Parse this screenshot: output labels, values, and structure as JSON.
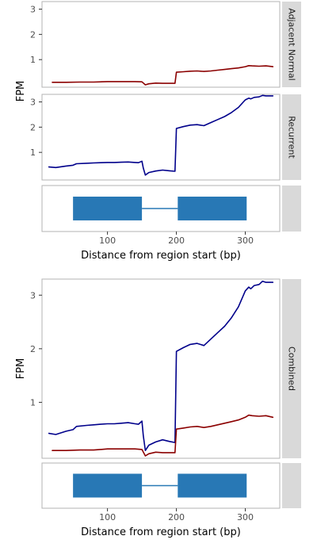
{
  "colors": {
    "adjacent_normal": "#8B0000",
    "recurrent": "#00008B",
    "gene_exon": "#2878B5",
    "strip_bg": "#D9D9D9",
    "panel_border": "#B3B3B3"
  },
  "chart_data": [
    {
      "type": "line",
      "facets": [
        "Adjacent Normal",
        "Recurrent"
      ],
      "ylabel": "FPM",
      "xlabel": "Distance from region start (bp)",
      "x_ticks": [
        100,
        200,
        300
      ],
      "y_ticks": [
        1,
        2,
        3
      ],
      "xlim": [
        5,
        350
      ],
      "ylim": [
        0,
        3.3
      ],
      "series": [
        {
          "name": "Adjacent Normal",
          "facet": "Adjacent Normal",
          "x": [
            20,
            40,
            60,
            80,
            100,
            120,
            140,
            150,
            155,
            160,
            170,
            180,
            190,
            198,
            200,
            210,
            220,
            230,
            240,
            250,
            260,
            270,
            280,
            290,
            300,
            305,
            310,
            320,
            330,
            340
          ],
          "y": [
            0.1,
            0.1,
            0.11,
            0.11,
            0.13,
            0.13,
            0.13,
            0.12,
            0.0,
            0.04,
            0.07,
            0.06,
            0.06,
            0.06,
            0.5,
            0.52,
            0.54,
            0.55,
            0.53,
            0.55,
            0.58,
            0.61,
            0.64,
            0.67,
            0.72,
            0.76,
            0.75,
            0.74,
            0.75,
            0.72
          ]
        },
        {
          "name": "Recurrent",
          "facet": "Recurrent",
          "x": [
            15,
            25,
            40,
            50,
            55,
            70,
            80,
            90,
            100,
            110,
            120,
            130,
            140,
            145,
            150,
            152,
            155,
            160,
            170,
            180,
            190,
            198,
            200,
            210,
            220,
            230,
            240,
            250,
            260,
            270,
            280,
            290,
            300,
            305,
            308,
            313,
            320,
            325,
            330,
            340
          ],
          "y": [
            0.42,
            0.4,
            0.46,
            0.49,
            0.55,
            0.57,
            0.58,
            0.59,
            0.6,
            0.6,
            0.61,
            0.62,
            0.6,
            0.59,
            0.65,
            0.38,
            0.1,
            0.2,
            0.26,
            0.3,
            0.27,
            0.25,
            1.95,
            2.02,
            2.08,
            2.1,
            2.06,
            2.18,
            2.3,
            2.42,
            2.58,
            2.78,
            3.08,
            3.15,
            3.12,
            3.18,
            3.2,
            3.26,
            3.24,
            3.24
          ]
        }
      ]
    },
    {
      "type": "line",
      "facets": [
        "Combined"
      ],
      "ylabel": "FPM",
      "xlabel": "Distance from region start (bp)",
      "x_ticks": [
        100,
        200,
        300
      ],
      "y_ticks": [
        1,
        2,
        3
      ],
      "xlim": [
        5,
        350
      ],
      "ylim": [
        0,
        3.3
      ],
      "series": [
        {
          "name": "Recurrent",
          "facet": "Combined",
          "x": [
            15,
            25,
            40,
            50,
            55,
            70,
            80,
            90,
            100,
            110,
            120,
            130,
            140,
            145,
            150,
            152,
            155,
            160,
            170,
            180,
            190,
            198,
            200,
            210,
            220,
            230,
            240,
            250,
            260,
            270,
            280,
            290,
            300,
            305,
            308,
            313,
            320,
            325,
            330,
            340
          ],
          "y": [
            0.42,
            0.4,
            0.46,
            0.49,
            0.55,
            0.57,
            0.58,
            0.59,
            0.6,
            0.6,
            0.61,
            0.62,
            0.6,
            0.59,
            0.65,
            0.38,
            0.1,
            0.2,
            0.26,
            0.3,
            0.27,
            0.25,
            1.95,
            2.02,
            2.08,
            2.1,
            2.06,
            2.18,
            2.3,
            2.42,
            2.58,
            2.78,
            3.08,
            3.15,
            3.12,
            3.18,
            3.2,
            3.26,
            3.24,
            3.24
          ]
        },
        {
          "name": "Adjacent Normal",
          "facet": "Combined",
          "x": [
            20,
            40,
            60,
            80,
            100,
            120,
            140,
            150,
            155,
            160,
            170,
            180,
            190,
            198,
            200,
            210,
            220,
            230,
            240,
            250,
            260,
            270,
            280,
            290,
            300,
            305,
            310,
            320,
            330,
            340
          ],
          "y": [
            0.1,
            0.1,
            0.11,
            0.11,
            0.13,
            0.13,
            0.13,
            0.12,
            0.0,
            0.04,
            0.07,
            0.06,
            0.06,
            0.06,
            0.5,
            0.52,
            0.54,
            0.55,
            0.53,
            0.55,
            0.58,
            0.61,
            0.64,
            0.67,
            0.72,
            0.76,
            0.75,
            0.74,
            0.75,
            0.72
          ]
        }
      ]
    }
  ],
  "gene_model": {
    "exons": [
      [
        50,
        150
      ],
      [
        202,
        302
      ]
    ],
    "introns": [
      [
        150,
        202
      ]
    ]
  }
}
